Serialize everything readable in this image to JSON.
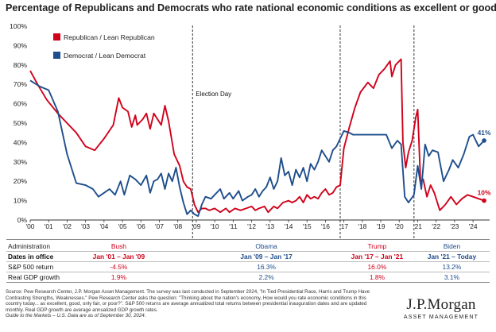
{
  "chart_data": {
    "type": "line",
    "title": "Percentage of Republicans and Democrats who rate national economic conditions as excellent or good",
    "xlabel": "",
    "ylabel": "",
    "x_ticks": [
      "'00",
      "'01",
      "'02",
      "'03",
      "'04",
      "'05",
      "'06",
      "'07",
      "'08",
      "'09",
      "'10",
      "'11",
      "'12",
      "'13",
      "'14",
      "'15",
      "'16",
      "'17",
      "'18",
      "'19",
      "'20",
      "'21",
      "'22",
      "'23",
      "'24"
    ],
    "xlim": [
      2000.0,
      2024.9
    ],
    "ylim": [
      0,
      100
    ],
    "y_ticks": [
      "0%",
      "10%",
      "20%",
      "30%",
      "40%",
      "50%",
      "60%",
      "70%",
      "80%",
      "90%",
      "100%"
    ],
    "grid": false,
    "legend_position": "top-left",
    "series": [
      {
        "name": "Republican / Lean Republican",
        "color": "#d0021b",
        "points": [
          [
            2000.0,
            77
          ],
          [
            2000.4,
            70
          ],
          [
            2000.9,
            62
          ],
          [
            2001.5,
            55
          ],
          [
            2002.0,
            50
          ],
          [
            2002.5,
            45
          ],
          [
            2003.0,
            38
          ],
          [
            2003.5,
            36
          ],
          [
            2004.0,
            42
          ],
          [
            2004.5,
            49
          ],
          [
            2004.8,
            63
          ],
          [
            2005.0,
            58
          ],
          [
            2005.3,
            56
          ],
          [
            2005.5,
            48
          ],
          [
            2005.7,
            54
          ],
          [
            2005.8,
            49
          ],
          [
            2006.1,
            52
          ],
          [
            2006.3,
            55
          ],
          [
            2006.5,
            47
          ],
          [
            2006.7,
            55
          ],
          [
            2006.9,
            52
          ],
          [
            2007.1,
            49
          ],
          [
            2007.3,
            59
          ],
          [
            2007.5,
            51
          ],
          [
            2007.8,
            34
          ],
          [
            2008.1,
            28
          ],
          [
            2008.3,
            20
          ],
          [
            2008.5,
            17
          ],
          [
            2008.7,
            16
          ],
          [
            2008.9,
            8
          ],
          [
            2009.1,
            4
          ],
          [
            2009.3,
            6
          ],
          [
            2009.5,
            6
          ],
          [
            2009.7,
            5
          ],
          [
            2010.0,
            6
          ],
          [
            2010.3,
            4
          ],
          [
            2010.6,
            6
          ],
          [
            2010.8,
            4
          ],
          [
            2011.1,
            6
          ],
          [
            2011.4,
            5
          ],
          [
            2011.7,
            6
          ],
          [
            2012.0,
            7
          ],
          [
            2012.2,
            5
          ],
          [
            2012.4,
            6
          ],
          [
            2012.7,
            7
          ],
          [
            2012.9,
            4
          ],
          [
            2013.2,
            7
          ],
          [
            2013.4,
            6
          ],
          [
            2013.7,
            9
          ],
          [
            2014.0,
            10
          ],
          [
            2014.2,
            9
          ],
          [
            2014.4,
            10
          ],
          [
            2014.6,
            12
          ],
          [
            2014.8,
            9
          ],
          [
            2015.0,
            13
          ],
          [
            2015.2,
            11
          ],
          [
            2015.4,
            12
          ],
          [
            2015.6,
            11
          ],
          [
            2015.8,
            14
          ],
          [
            2016.0,
            16
          ],
          [
            2016.2,
            13
          ],
          [
            2016.4,
            14
          ],
          [
            2016.6,
            17
          ],
          [
            2016.8,
            18
          ],
          [
            2017.0,
            37
          ],
          [
            2017.3,
            48
          ],
          [
            2017.6,
            58
          ],
          [
            2017.9,
            66
          ],
          [
            2018.3,
            71
          ],
          [
            2018.6,
            68
          ],
          [
            2018.9,
            75
          ],
          [
            2019.2,
            78
          ],
          [
            2019.5,
            82
          ],
          [
            2019.6,
            74
          ],
          [
            2019.8,
            80
          ],
          [
            2020.1,
            83
          ],
          [
            2020.2,
            40
          ],
          [
            2020.35,
            27
          ],
          [
            2020.5,
            35
          ],
          [
            2020.7,
            41
          ],
          [
            2020.9,
            53
          ],
          [
            2021.0,
            57
          ],
          [
            2021.15,
            20
          ],
          [
            2021.3,
            21
          ],
          [
            2021.5,
            12
          ],
          [
            2021.7,
            18
          ],
          [
            2021.9,
            14
          ],
          [
            2022.2,
            5
          ],
          [
            2022.5,
            8
          ],
          [
            2022.8,
            12
          ],
          [
            2023.1,
            8
          ],
          [
            2023.4,
            11
          ],
          [
            2023.7,
            13
          ],
          [
            2024.0,
            12
          ],
          [
            2024.3,
            11
          ],
          [
            2024.6,
            10
          ]
        ],
        "end_label": "10%"
      },
      {
        "name": "Democrat / Lean Democrat",
        "color": "#1f4e8c",
        "points": [
          [
            2000.0,
            72
          ],
          [
            2000.5,
            69
          ],
          [
            2001.0,
            67
          ],
          [
            2001.5,
            56
          ],
          [
            2002.0,
            34
          ],
          [
            2002.5,
            19
          ],
          [
            2003.0,
            18
          ],
          [
            2003.4,
            16
          ],
          [
            2003.7,
            12
          ],
          [
            2004.0,
            14
          ],
          [
            2004.3,
            16
          ],
          [
            2004.6,
            13
          ],
          [
            2004.9,
            20
          ],
          [
            2005.1,
            13
          ],
          [
            2005.4,
            23
          ],
          [
            2005.7,
            21
          ],
          [
            2006.0,
            18
          ],
          [
            2006.3,
            23
          ],
          [
            2006.5,
            14
          ],
          [
            2006.7,
            20
          ],
          [
            2006.9,
            21
          ],
          [
            2007.1,
            24
          ],
          [
            2007.3,
            16
          ],
          [
            2007.5,
            24
          ],
          [
            2007.7,
            20
          ],
          [
            2007.9,
            27
          ],
          [
            2008.1,
            17
          ],
          [
            2008.3,
            9
          ],
          [
            2008.5,
            3
          ],
          [
            2008.7,
            5
          ],
          [
            2008.9,
            3
          ],
          [
            2009.1,
            2
          ],
          [
            2009.3,
            8
          ],
          [
            2009.5,
            12
          ],
          [
            2009.8,
            11
          ],
          [
            2010.0,
            13
          ],
          [
            2010.3,
            16
          ],
          [
            2010.5,
            11
          ],
          [
            2010.8,
            14
          ],
          [
            2011.0,
            11
          ],
          [
            2011.3,
            15
          ],
          [
            2011.5,
            10
          ],
          [
            2011.8,
            12
          ],
          [
            2012.0,
            13
          ],
          [
            2012.2,
            16
          ],
          [
            2012.4,
            12
          ],
          [
            2012.6,
            15
          ],
          [
            2012.8,
            17
          ],
          [
            2013.0,
            22
          ],
          [
            2013.2,
            16
          ],
          [
            2013.4,
            20
          ],
          [
            2013.6,
            32
          ],
          [
            2013.8,
            23
          ],
          [
            2014.0,
            25
          ],
          [
            2014.2,
            18
          ],
          [
            2014.4,
            26
          ],
          [
            2014.6,
            22
          ],
          [
            2014.8,
            27
          ],
          [
            2015.0,
            20
          ],
          [
            2015.2,
            29
          ],
          [
            2015.4,
            26
          ],
          [
            2015.6,
            30
          ],
          [
            2015.8,
            36
          ],
          [
            2016.0,
            33
          ],
          [
            2016.2,
            30
          ],
          [
            2016.4,
            36
          ],
          [
            2016.6,
            38
          ],
          [
            2016.8,
            42
          ],
          [
            2017.0,
            46
          ],
          [
            2017.3,
            45
          ],
          [
            2017.5,
            44
          ],
          [
            2018.0,
            44
          ],
          [
            2018.5,
            44
          ],
          [
            2019.0,
            44
          ],
          [
            2019.3,
            44
          ],
          [
            2019.6,
            37
          ],
          [
            2019.9,
            41
          ],
          [
            2020.1,
            39
          ],
          [
            2020.3,
            12
          ],
          [
            2020.5,
            9
          ],
          [
            2020.8,
            13
          ],
          [
            2021.0,
            28
          ],
          [
            2021.2,
            16
          ],
          [
            2021.4,
            39
          ],
          [
            2021.6,
            33
          ],
          [
            2021.8,
            36
          ],
          [
            2022.1,
            35
          ],
          [
            2022.4,
            20
          ],
          [
            2022.7,
            26
          ],
          [
            2022.9,
            31
          ],
          [
            2023.2,
            27
          ],
          [
            2023.5,
            34
          ],
          [
            2023.8,
            43
          ],
          [
            2024.0,
            44
          ],
          [
            2024.3,
            38
          ],
          [
            2024.6,
            41
          ]
        ],
        "end_label": "41%"
      }
    ],
    "annotations": [
      {
        "text": "Election Day",
        "x": 2008.8
      }
    ],
    "vlines_x": [
      2008.8,
      2016.8,
      2020.8
    ]
  },
  "table": {
    "row_labels": [
      "Administration",
      "Dates in office",
      "S&P 500 return",
      "Real GDP growth"
    ],
    "columns": [
      {
        "administration": "Bush",
        "dates": "Jan '01 – Jan '09",
        "sp500": "-4.5%",
        "gdp": "1.9%",
        "color": "#d0021b",
        "center_year": 2004.8
      },
      {
        "administration": "Obama",
        "dates": "Jan '09 – Jan '17",
        "sp500": "16.3%",
        "gdp": "2.2%",
        "color": "#1f4e8c",
        "center_year": 2012.8
      },
      {
        "administration": "Trump",
        "dates": "Jan '17 – Jan '21",
        "sp500": "16.0%",
        "gdp": "1.8%",
        "color": "#d0021b",
        "center_year": 2018.8
      },
      {
        "administration": "Biden",
        "dates": "Jan '21 – Today",
        "sp500": "13.2%",
        "gdp": "3.1%",
        "color": "#1f4e8c",
        "center_year": 2022.85
      }
    ]
  },
  "source_text": "Source: Pew Research Center, J.P. Morgan Asset Management. The survey was last conducted in September 2024, \"In Tied Presidential Race, Harris and Trump Have Contrasting Strengths, Weaknesses.\" Pew Research Center asks the question: \"Thinking about the nation's economy, How would you rate economic conditions in this country today... as excellent, good, only fair, or poor?\". S&P 500 returns are average annualized total returns between presidential inauguration dates and are updated monthly. Real GDP growth are average annualized GDP growth rates.",
  "guide_text": "Guide to the Markets – U.S. Data are as of September 30, 2024.",
  "logo": {
    "name": "J.P.Morgan",
    "sub": "ASSET MANAGEMENT"
  }
}
